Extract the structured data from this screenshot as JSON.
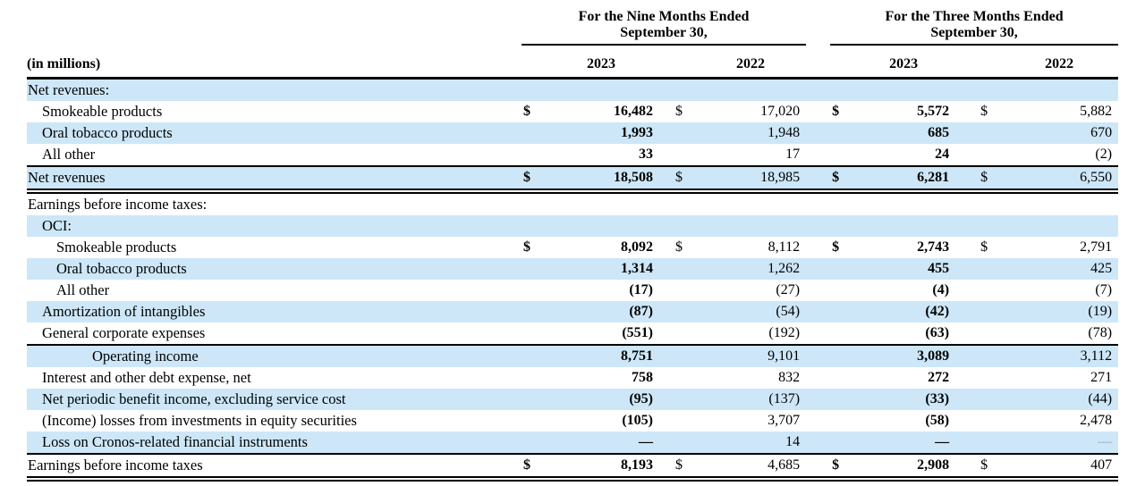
{
  "colors": {
    "stripe_blue": "#cde7f8",
    "rule_black": "#000000",
    "muted_dash_gray": "#9aa2a8",
    "text": "#000000"
  },
  "table": {
    "unit_label": "(in millions)",
    "currency_symbol": "$",
    "col_groups": [
      {
        "title_line1": "For the Nine Months Ended",
        "title_line2": "September 30,",
        "years": [
          "2023",
          "2022"
        ]
      },
      {
        "title_line1": "For the Three Months Ended",
        "title_line2": "September 30,",
        "years": [
          "2023",
          "2022"
        ]
      }
    ],
    "rows": [
      {
        "name": "row-net-revenues-section",
        "label": "Net revenues:",
        "indent": 0,
        "shaded": true,
        "dollar": false,
        "values": [
          "",
          "",
          "",
          ""
        ]
      },
      {
        "name": "row-smokeable-products",
        "label": "Smokeable products",
        "indent": 1,
        "shaded": false,
        "dollar": true,
        "values": [
          "16,482",
          "17,020",
          "5,572",
          "5,882"
        ]
      },
      {
        "name": "row-oral-tobacco-products",
        "label": "Oral tobacco products",
        "indent": 1,
        "shaded": true,
        "dollar": false,
        "values": [
          "1,993",
          "1,948",
          "685",
          "670"
        ]
      },
      {
        "name": "row-all-other-revenues",
        "label": "All other",
        "indent": 1,
        "shaded": false,
        "dollar": false,
        "values": [
          "33",
          "17",
          "24",
          "(2)"
        ]
      },
      {
        "name": "row-net-revenues-total",
        "label": "Net revenues",
        "indent": 0,
        "shaded": true,
        "dollar": true,
        "values": [
          "18,508",
          "18,985",
          "6,281",
          "6,550"
        ],
        "border_top": "solid",
        "border_bottom": "double"
      },
      {
        "name": "row-earnings-section",
        "label": "Earnings before income taxes:",
        "indent": 0,
        "shaded": false,
        "dollar": false,
        "values": [
          "",
          "",
          "",
          ""
        ]
      },
      {
        "name": "row-oci-section",
        "label": "OCI:",
        "indent": 1,
        "shaded": true,
        "dollar": false,
        "values": [
          "",
          "",
          "",
          ""
        ]
      },
      {
        "name": "row-oci-smokeable",
        "label": "Smokeable products",
        "indent": 2,
        "shaded": false,
        "dollar": true,
        "values": [
          "8,092",
          "8,112",
          "2,743",
          "2,791"
        ]
      },
      {
        "name": "row-oci-oral-tobacco",
        "label": "Oral tobacco products",
        "indent": 2,
        "shaded": true,
        "dollar": false,
        "values": [
          "1,314",
          "1,262",
          "455",
          "425"
        ]
      },
      {
        "name": "row-oci-all-other",
        "label": "All other",
        "indent": 2,
        "shaded": false,
        "dollar": false,
        "values": [
          "(17)",
          "(27)",
          "(4)",
          "(7)"
        ]
      },
      {
        "name": "row-amortization-intangibles",
        "label": "Amortization of intangibles",
        "indent": 1,
        "shaded": true,
        "dollar": false,
        "values": [
          "(87)",
          "(54)",
          "(42)",
          "(19)"
        ]
      },
      {
        "name": "row-general-corporate-expenses",
        "label": "General corporate expenses",
        "indent": 1,
        "shaded": false,
        "dollar": false,
        "values": [
          "(551)",
          "(192)",
          "(63)",
          "(78)"
        ],
        "border_bottom": "solid"
      },
      {
        "name": "row-operating-income",
        "label": "Operating income",
        "indent": 3,
        "shaded": true,
        "dollar": false,
        "values": [
          "8,751",
          "9,101",
          "3,089",
          "3,112"
        ]
      },
      {
        "name": "row-interest-debt-expense",
        "label": "Interest and other debt expense, net",
        "indent": 1,
        "shaded": false,
        "dollar": false,
        "values": [
          "758",
          "832",
          "272",
          "271"
        ]
      },
      {
        "name": "row-net-periodic-benefit",
        "label": "Net periodic benefit income, excluding service cost",
        "indent": 1,
        "shaded": true,
        "dollar": false,
        "values": [
          "(95)",
          "(137)",
          "(33)",
          "(44)"
        ]
      },
      {
        "name": "row-income-losses-equity",
        "label": "(Income) losses from investments in equity securities",
        "indent": 1,
        "shaded": false,
        "dollar": false,
        "values": [
          "(105)",
          "3,707",
          "(58)",
          "2,478"
        ]
      },
      {
        "name": "row-cronos-loss",
        "label": "Loss on Cronos-related financial instruments",
        "indent": 1,
        "shaded": true,
        "dollar": false,
        "values": [
          "—",
          "14",
          "—",
          "—"
        ],
        "muted": [
          3
        ],
        "border_bottom": "solid"
      },
      {
        "name": "row-earnings-total",
        "label": "Earnings before income taxes",
        "indent": 0,
        "shaded": false,
        "dollar": true,
        "values": [
          "8,193",
          "4,685",
          "2,908",
          "407"
        ],
        "border_bottom": "double"
      }
    ]
  }
}
